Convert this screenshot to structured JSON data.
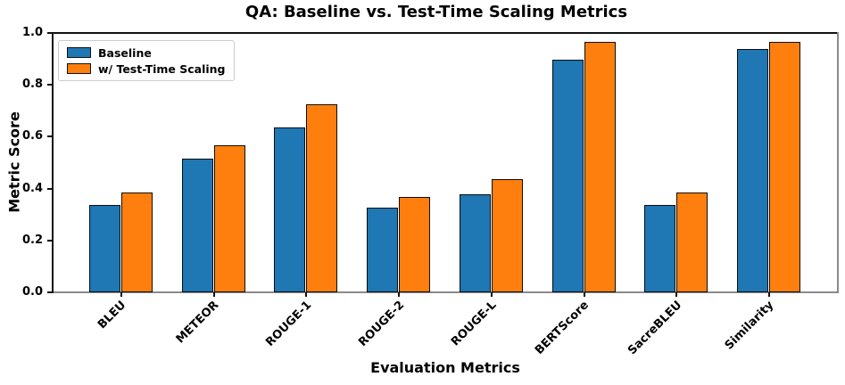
{
  "chart_data": {
    "type": "bar",
    "title": "QA: Baseline vs. Test-Time Scaling Metrics",
    "xlabel": "Evaluation Metrics",
    "ylabel": "Metric Score",
    "categories": [
      "BLEU",
      "METEOR",
      "ROUGE-1",
      "ROUGE-2",
      "ROUGE-L",
      "BERTScore",
      "SacreBLEU",
      "Similarity"
    ],
    "series": [
      {
        "name": "Baseline",
        "color": "#1f77b4",
        "values": [
          0.34,
          0.52,
          0.64,
          0.33,
          0.38,
          0.9,
          0.34,
          0.94
        ]
      },
      {
        "name": "w/ Test-Time Scaling",
        "color": "#ff7f0e",
        "values": [
          0.39,
          0.57,
          0.73,
          0.37,
          0.44,
          0.97,
          0.39,
          0.97
        ]
      }
    ],
    "ylim": [
      0.0,
      1.0
    ],
    "yticks": [
      0.0,
      0.2,
      0.4,
      0.6,
      0.8,
      1.0
    ],
    "ytick_labels": [
      "0.0",
      "0.2",
      "0.4",
      "0.6",
      "0.8",
      "1.0"
    ],
    "grid": false,
    "legend_position": "upper left",
    "bar_edge_color": "#000000",
    "background_color": "#ffffff"
  }
}
